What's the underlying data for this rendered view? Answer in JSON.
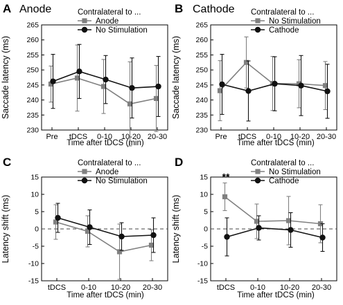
{
  "colors": {
    "series_gray": "#808080",
    "series_black": "#111111",
    "axis": "#000000",
    "zero_line": "#444444"
  },
  "chart_data": [
    {
      "panel": "A",
      "type": "line",
      "title": "Anode",
      "xlabel": "Time after tDCS (min)",
      "ylabel": "Saccade latency (ms)",
      "ylim": [
        230,
        265
      ],
      "yticks": [
        230,
        235,
        240,
        245,
        250,
        255,
        260,
        265
      ],
      "categories": [
        "Pre",
        "tDCS",
        "0-10",
        "10-20",
        "20-30"
      ],
      "legend_title": "Contralateral to ...",
      "zero_line": false,
      "series": [
        {
          "name": "Anode",
          "marker": "square",
          "color": "#808080",
          "values": [
            245.3,
            247.3,
            244.5,
            238.7,
            240.5
          ],
          "errors": [
            6,
            11,
            9,
            14,
            11
          ]
        },
        {
          "name": "No Stimulation",
          "marker": "circle",
          "color": "#111111",
          "values": [
            246.2,
            249.5,
            246.8,
            244.0,
            244.5
          ],
          "errors": [
            9,
            9,
            8,
            10,
            10
          ]
        }
      ],
      "annotations": []
    },
    {
      "panel": "B",
      "type": "line",
      "title": "Cathode",
      "xlabel": "Time after tDCS (min)",
      "ylabel": "Saccade latency (ms)",
      "ylim": [
        230,
        265
      ],
      "yticks": [
        230,
        235,
        240,
        245,
        250,
        255,
        260,
        265
      ],
      "categories": [
        "Pre",
        "tDCS",
        "0-10",
        "10-20",
        "20-30"
      ],
      "legend_title": "Contralateral to ...",
      "zero_line": false,
      "series": [
        {
          "name": "No Stimulation",
          "marker": "square",
          "color": "#808080",
          "values": [
            243.1,
            252.5,
            245.5,
            245.4,
            244.8
          ],
          "errors": [
            10,
            8.5,
            9,
            8,
            8
          ]
        },
        {
          "name": "Cathode",
          "marker": "circle",
          "color": "#111111",
          "values": [
            245.2,
            243.0,
            245.4,
            244.8,
            242.9
          ],
          "errors": [
            10,
            10,
            9,
            10,
            9
          ]
        }
      ],
      "annotations": []
    },
    {
      "panel": "C",
      "type": "line",
      "title": "",
      "xlabel": "Time after tDCS (min)",
      "ylabel": "Latency shift (ms)",
      "ylim": [
        -15,
        15
      ],
      "yticks": [
        -15,
        -10,
        -5,
        0,
        5,
        10,
        15
      ],
      "categories": [
        "tDCS",
        "0-10",
        "10-20",
        "20-30"
      ],
      "legend_title": "Contralateral to ...",
      "zero_line": true,
      "series": [
        {
          "name": "Anode",
          "marker": "square",
          "color": "#808080",
          "values": [
            2.0,
            -0.7,
            -6.6,
            -4.7
          ],
          "errors": [
            5,
            4.5,
            8,
            4.5
          ]
        },
        {
          "name": "No Stimulation",
          "marker": "circle",
          "color": "#111111",
          "values": [
            3.2,
            0.5,
            -2.2,
            -1.8
          ],
          "errors": [
            4.2,
            5,
            4,
            5
          ]
        }
      ],
      "annotations": []
    },
    {
      "panel": "D",
      "type": "line",
      "title": "",
      "xlabel": "Time after tDCS (min)",
      "ylabel": "Latency shift (ms)",
      "ylim": [
        -15,
        15
      ],
      "yticks": [
        -15,
        -10,
        -5,
        0,
        5,
        10,
        15
      ],
      "categories": [
        "tDCS",
        "0-10",
        "10-20",
        "20-30"
      ],
      "legend_title": "Contralateral to ...",
      "zero_line": true,
      "series": [
        {
          "name": "No Stimulation",
          "marker": "square",
          "color": "#808080",
          "values": [
            9.3,
            2.2,
            2.4,
            1.5
          ],
          "errors": [
            4,
            5,
            7,
            5.5
          ]
        },
        {
          "name": "Cathode",
          "marker": "circle",
          "color": "#111111",
          "values": [
            -2.3,
            0.3,
            -0.3,
            -2.5
          ],
          "errors": [
            5.5,
            3.5,
            5,
            4
          ]
        }
      ],
      "annotations": [
        {
          "text": "**",
          "category": "tDCS"
        }
      ]
    }
  ]
}
